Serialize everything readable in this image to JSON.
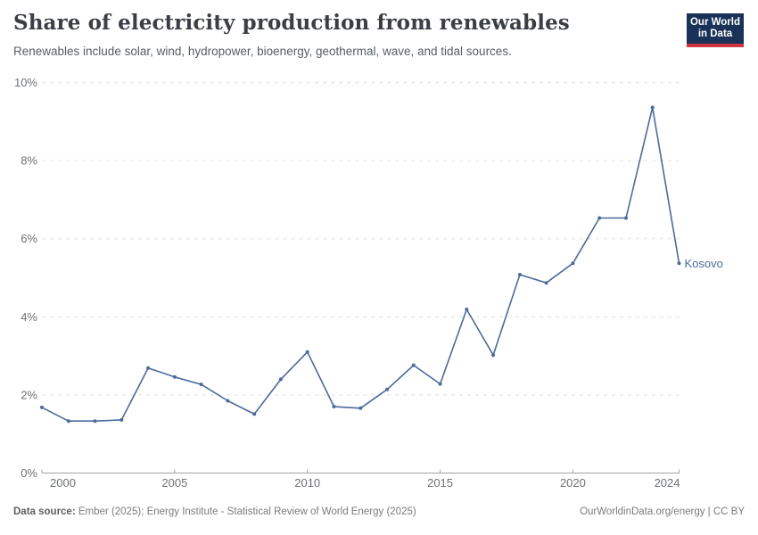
{
  "header": {
    "title": "Share of electricity production from renewables",
    "subtitle": "Renewables include solar, wind, hydropower, bioenergy, geothermal, wave, and tidal sources."
  },
  "logo": {
    "line1": "Our World",
    "line2": "in Data",
    "background_color": "#1a3257",
    "accent_color": "#d1353f"
  },
  "chart_data": {
    "type": "line",
    "title": "Share of electricity production from renewables",
    "xlabel": "",
    "ylabel": "",
    "unit": "%",
    "grid": true,
    "legend_position": "end-of-line",
    "xlim": [
      2000,
      2024
    ],
    "ylim": [
      0,
      10
    ],
    "x": [
      2000,
      2001,
      2002,
      2003,
      2004,
      2005,
      2006,
      2007,
      2008,
      2009,
      2010,
      2011,
      2012,
      2013,
      2014,
      2015,
      2016,
      2017,
      2018,
      2019,
      2020,
      2021,
      2022,
      2023,
      2024
    ],
    "series": [
      {
        "name": "Kosovo",
        "color": "#4c6a9c",
        "values": [
          1.68,
          1.33,
          1.33,
          1.36,
          2.69,
          2.46,
          2.27,
          1.85,
          1.51,
          2.4,
          3.1,
          1.7,
          1.66,
          2.14,
          2.76,
          2.28,
          4.19,
          3.02,
          5.08,
          4.87,
          5.37,
          6.53,
          6.53,
          9.36,
          5.37
        ]
      }
    ],
    "x_ticks": [
      {
        "value": 2000,
        "label": "2000"
      },
      {
        "value": 2005,
        "label": "2005"
      },
      {
        "value": 2010,
        "label": "2010"
      },
      {
        "value": 2015,
        "label": "2015"
      },
      {
        "value": 2020,
        "label": "2020"
      },
      {
        "value": 2024,
        "label": "2024"
      }
    ],
    "y_ticks": [
      {
        "value": 0,
        "label": "0%"
      },
      {
        "value": 2,
        "label": "2%"
      },
      {
        "value": 4,
        "label": "4%"
      },
      {
        "value": 6,
        "label": "6%"
      },
      {
        "value": 8,
        "label": "8%"
      },
      {
        "value": 10,
        "label": "10%"
      }
    ],
    "colors": {
      "line": "#4c6a9c",
      "gridline": "#e0e0e0",
      "axis": "#a3a3a3",
      "tick_label": "#6d7076"
    }
  },
  "footer": {
    "source_label": "Data source:",
    "source_text": "Ember (2025); Energy Institute - Statistical Review of World Energy (2025)",
    "credit": "OurWorldinData.org/energy | CC BY"
  }
}
